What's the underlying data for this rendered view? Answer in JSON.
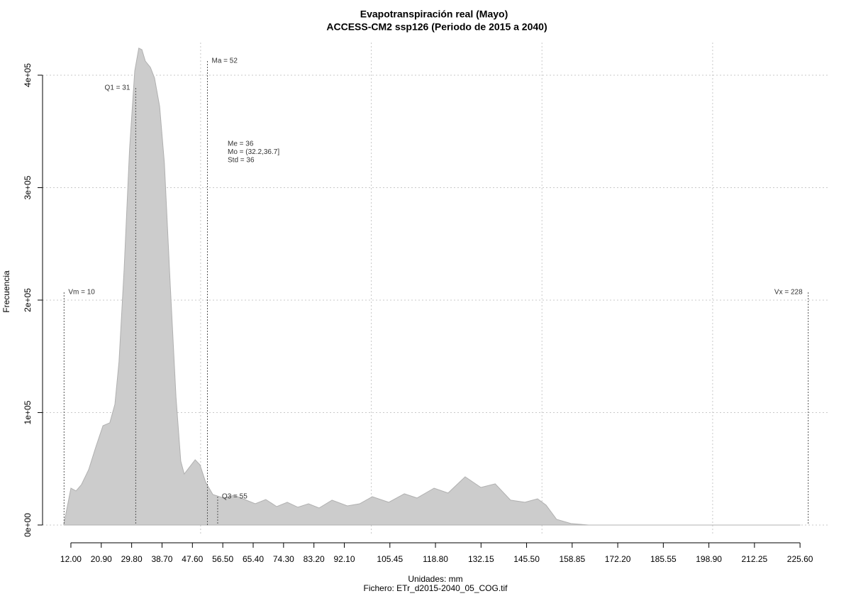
{
  "chart_data": {
    "type": "area",
    "title": "Evapotranspiración real (Mayo)",
    "subtitle": "ACCESS-CM2 ssp126 (Periodo de 2015 a 2040)",
    "x_label": "Unidades: mm",
    "footnote": "Fichero: ETr_d2015-2040_05_COG.tif",
    "y_label": "Frecuencia",
    "color": "#cccccc",
    "grid": true,
    "x": [
      9.9,
      12,
      13.5,
      15.1,
      17.2,
      19.3,
      21.4,
      23.4,
      24.9,
      26.1,
      27.6,
      29.2,
      30.7,
      31.9,
      32.8,
      33.8,
      35.3,
      36.5,
      38.0,
      39.4,
      41.1,
      42.8,
      44.2,
      45.2,
      46.5,
      48.4,
      49.8,
      51.5,
      53.6,
      56.7,
      59.8,
      62.9,
      66.0,
      69.1,
      72.3,
      75.4,
      78.5,
      81.6,
      84.7,
      88.5,
      93.0,
      96.6,
      100.3,
      105.1,
      109.7,
      113.4,
      118.4,
      122.5,
      127.5,
      132.1,
      136.3,
      140.8,
      145.0,
      148.7,
      151.2,
      154.3,
      158.5,
      163.7,
      225.6
    ],
    "values": [
      0,
      32800,
      30300,
      36000,
      49200,
      69400,
      88300,
      90900,
      107300,
      145100,
      227100,
      334400,
      403800,
      424000,
      422700,
      412600,
      406900,
      397500,
      372200,
      321800,
      214500,
      113600,
      56800,
      45400,
      50500,
      58000,
      53600,
      37900,
      27100,
      24000,
      26500,
      22700,
      18900,
      22700,
      16400,
      20200,
      15800,
      18900,
      15100,
      22100,
      17000,
      18900,
      25200,
      20200,
      27800,
      24000,
      32800,
      28400,
      42900,
      33400,
      36600,
      22100,
      20200,
      23300,
      17700,
      5000,
      1300,
      0,
      0
    ],
    "xlim": [
      3.7,
      234.3
    ],
    "ylim": [
      -7600,
      429000
    ],
    "xticks": [
      {
        "value": 12,
        "label": "12.00"
      },
      {
        "value": 20.9,
        "label": "20.90"
      },
      {
        "value": 29.8,
        "label": "29.80"
      },
      {
        "value": 38.7,
        "label": "38.70"
      },
      {
        "value": 47.6,
        "label": "47.60"
      },
      {
        "value": 56.5,
        "label": "56.50"
      },
      {
        "value": 65.4,
        "label": "65.40"
      },
      {
        "value": 74.3,
        "label": "74.30"
      },
      {
        "value": 83.2,
        "label": "83.20"
      },
      {
        "value": 92.1,
        "label": "92.10"
      },
      {
        "value": 105.45,
        "label": "105.45"
      },
      {
        "value": 118.8,
        "label": "118.80"
      },
      {
        "value": 132.15,
        "label": "132.15"
      },
      {
        "value": 145.5,
        "label": "145.50"
      },
      {
        "value": 158.85,
        "label": "158.85"
      },
      {
        "value": 172.2,
        "label": "172.20"
      },
      {
        "value": 185.55,
        "label": "185.55"
      },
      {
        "value": 198.9,
        "label": "198.90"
      },
      {
        "value": 212.25,
        "label": "212.25"
      },
      {
        "value": 225.6,
        "label": "225.60"
      }
    ],
    "xgrid": [
      50,
      100,
      150,
      200
    ],
    "yticks": [
      {
        "value": 0,
        "label": "0e+00"
      },
      {
        "value": 100000,
        "label": "1e+05"
      },
      {
        "value": 200000,
        "label": "2e+05"
      },
      {
        "value": 300000,
        "label": "3e+05"
      },
      {
        "value": 400000,
        "label": "4e+05"
      }
    ],
    "markers": [
      {
        "label": "Vm = 10",
        "value": 10
      },
      {
        "label": "Q1 = 31",
        "value": 31
      },
      {
        "label": "Ma = 52",
        "value": 52
      },
      {
        "label": "Q3 = 55",
        "value": 55
      },
      {
        "label": "Vx = 228",
        "value": 228
      }
    ],
    "stats": [
      "Me = 36",
      "Mo = (32.2,36.7]",
      "Std = 36"
    ]
  }
}
